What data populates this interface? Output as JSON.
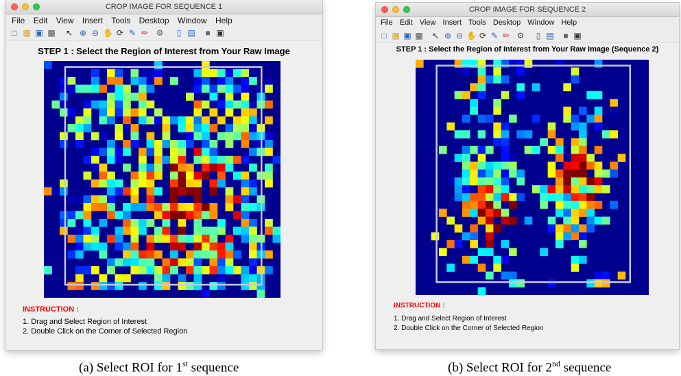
{
  "windows": [
    {
      "title": "CROP IMAGE FOR SEQUENCE 1",
      "menu": [
        "File",
        "Edit",
        "View",
        "Insert",
        "Tools",
        "Desktop",
        "Window",
        "Help"
      ],
      "step_text": "STEP 1 : Select the Region of Interest from Your Raw Image",
      "instruction_heading": "INSTRUCTION :",
      "instructions": [
        "1. Drag and Select Region of Interest",
        "2. Double Click on the Corner of Selected Region"
      ],
      "seed": 17,
      "pattern": "single"
    },
    {
      "title": "CROP IMAGE FOR SEQUENCE 2",
      "menu": [
        "File",
        "Edit",
        "View",
        "Insert",
        "Tools",
        "Desktop",
        "Window",
        "Help"
      ],
      "step_text": "STEP 1 : Select the Region of Interest from Your Raw Image (Sequence 2)",
      "instruction_heading": "INSTRUCTION :",
      "instructions": [
        "1. Drag and Select Region of Interest",
        "2. Double Click on the Corner of Selected Region"
      ],
      "seed": 53,
      "pattern": "double"
    }
  ],
  "toolbar_icons": [
    "new-figure-icon",
    "open-icon",
    "save-icon",
    "print-icon",
    "pointer-icon",
    "zoom-in-icon",
    "zoom-out-icon",
    "pan-icon",
    "rotate-icon",
    "data-cursor-icon",
    "brush-icon",
    "link-icon",
    "colorbar-icon",
    "legend-icon",
    "hide-plot-tools-icon",
    "show-plot-tools-icon"
  ],
  "captions": [
    {
      "prefix": "(a) Select ROI for 1",
      "sup": "st",
      "suffix": " sequence"
    },
    {
      "prefix": "(b) Select ROI for 2",
      "sup": "nd",
      "suffix": " sequence"
    }
  ],
  "colors": {
    "selection_rect": "#c8c8e0",
    "instruction_heading": "#ff0000",
    "colormap": "jet"
  }
}
